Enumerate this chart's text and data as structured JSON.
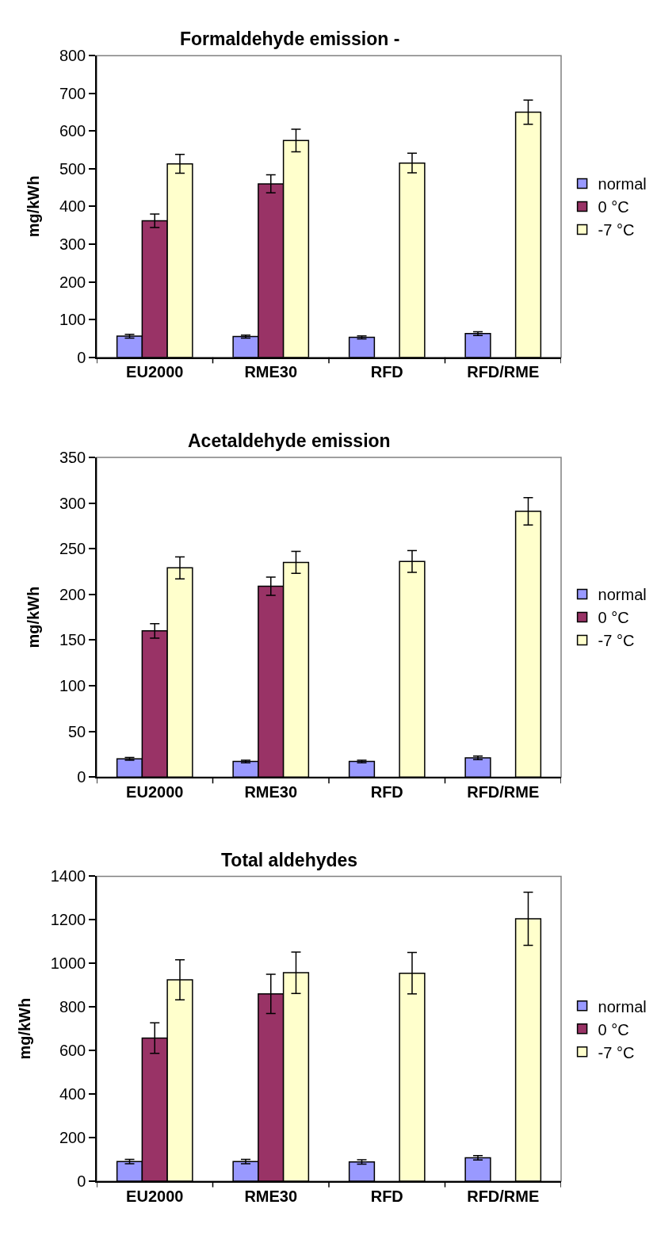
{
  "chart_data": [
    {
      "type": "bar",
      "title": "Formaldehyde emission -",
      "ylabel": "mg/kWh",
      "categories": [
        "EU2000",
        "RME30",
        "RFD",
        "RFD/RME"
      ],
      "ylim": [
        0,
        800
      ],
      "yticks": [
        0,
        100,
        200,
        300,
        400,
        500,
        600,
        700,
        800
      ],
      "grid": false,
      "legend": "right",
      "series": [
        {
          "name": "normal",
          "color": "#9999ff",
          "values": [
            56,
            55,
            53,
            63
          ],
          "errors": [
            5,
            4,
            4,
            5
          ]
        },
        {
          "name": "0 °C",
          "color": "#993366",
          "values": [
            362,
            460,
            null,
            null
          ],
          "errors": [
            18,
            24,
            null,
            null
          ]
        },
        {
          "name": "-7 °C",
          "color": "#ffffcc",
          "values": [
            513,
            575,
            515,
            650
          ],
          "errors": [
            25,
            30,
            26,
            32
          ]
        }
      ]
    },
    {
      "type": "bar",
      "title": "Acetaldehyde emission",
      "ylabel": "mg/kWh",
      "categories": [
        "EU2000",
        "RME30",
        "RFD",
        "RFD/RME"
      ],
      "ylim": [
        0,
        350
      ],
      "yticks": [
        0,
        50,
        100,
        150,
        200,
        250,
        300,
        350
      ],
      "grid": false,
      "legend": "right",
      "series": [
        {
          "name": "normal",
          "color": "#9999ff",
          "values": [
            20,
            17,
            17,
            21
          ],
          "errors": [
            1.5,
            1.5,
            1.5,
            2
          ]
        },
        {
          "name": "0 °C",
          "color": "#993366",
          "values": [
            160,
            209,
            null,
            null
          ],
          "errors": [
            8,
            10,
            null,
            null
          ]
        },
        {
          "name": "-7 °C",
          "color": "#ffffcc",
          "values": [
            229,
            235,
            236,
            291
          ],
          "errors": [
            12,
            12,
            12,
            15
          ]
        }
      ]
    },
    {
      "type": "bar",
      "title": "Total aldehydes",
      "ylabel": "mg/kWh",
      "categories": [
        "EU2000",
        "RME30",
        "RFD",
        "RFD/RME"
      ],
      "ylim": [
        0,
        1400
      ],
      "yticks": [
        0,
        200,
        400,
        600,
        800,
        1000,
        1200,
        1400
      ],
      "grid": false,
      "legend": "right",
      "series": [
        {
          "name": "normal",
          "color": "#9999ff",
          "values": [
            90,
            90,
            88,
            107
          ],
          "errors": [
            10,
            10,
            10,
            10
          ]
        },
        {
          "name": "0 °C",
          "color": "#993366",
          "values": [
            657,
            860,
            null,
            null
          ],
          "errors": [
            70,
            90,
            null,
            null
          ]
        },
        {
          "name": "-7 °C",
          "color": "#ffffcc",
          "values": [
            925,
            957,
            955,
            1205
          ],
          "errors": [
            92,
            95,
            95,
            122
          ]
        }
      ]
    }
  ]
}
